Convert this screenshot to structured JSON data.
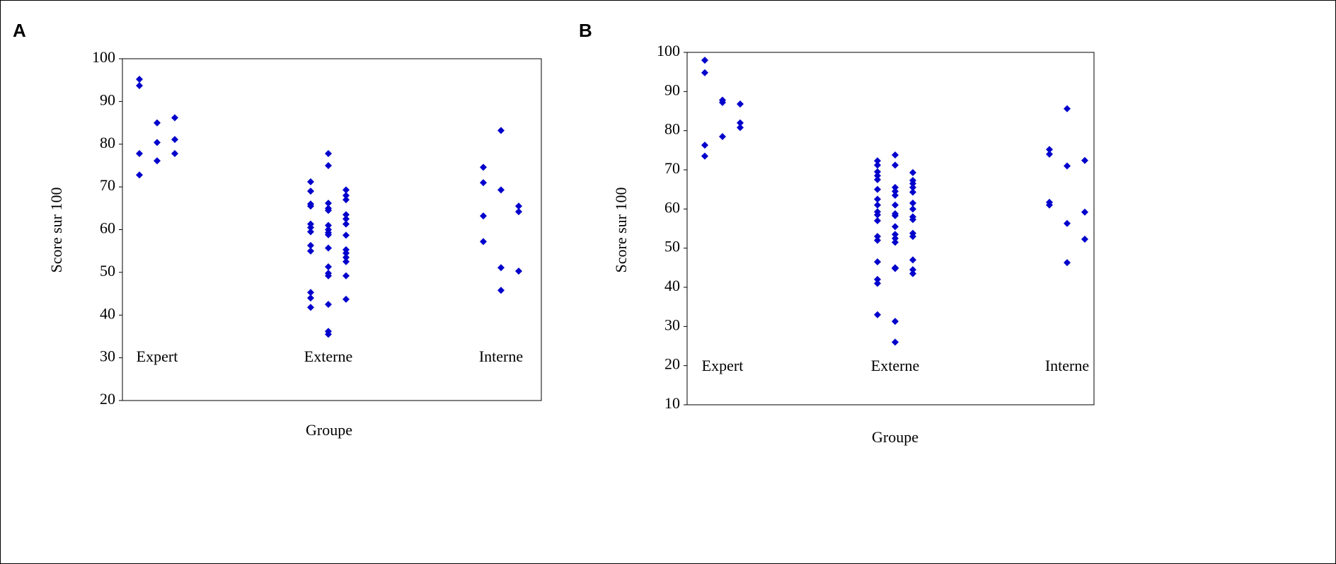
{
  "chart_data": [
    {
      "type": "strip",
      "panel": "A",
      "ylabel": "Score sur 100",
      "xlabel": "Groupe",
      "categories": [
        "Expert",
        "Externe",
        "Interne"
      ],
      "color": "#0000cc",
      "ylim": [
        20,
        100
      ],
      "yticks": [
        20,
        30,
        40,
        50,
        60,
        70,
        80,
        90,
        100
      ],
      "values": [
        [
          [
            95.2,
            93.7,
            77.8,
            72.8
          ],
          [
            85.0,
            80.4,
            76.1
          ],
          [
            86.2,
            81.1,
            77.8
          ]
        ],
        [
          [
            71.2,
            69.0,
            66.0,
            65.5,
            61.3,
            60.5,
            59.5,
            56.3,
            55.0,
            45.3,
            44.0,
            41.8
          ],
          [
            77.8,
            75.0,
            66.2,
            65.0,
            64.5,
            61.0,
            60.0,
            59.3,
            58.8,
            55.7,
            51.3,
            49.8,
            49.2,
            42.5,
            36.2,
            35.5
          ],
          [
            69.3,
            68.0,
            67.0,
            63.5,
            62.5,
            61.3,
            58.7,
            55.3,
            54.5,
            53.5,
            52.5,
            49.2,
            43.7
          ]
        ],
        [
          [
            74.6,
            71.0,
            63.2,
            57.2
          ],
          [
            83.2,
            69.3,
            51.1,
            45.8
          ],
          [
            65.5,
            64.2,
            50.3
          ]
        ]
      ]
    },
    {
      "type": "strip",
      "panel": "B",
      "ylabel": "Score sur 100",
      "xlabel": "Groupe",
      "categories": [
        "Expert",
        "Externe",
        "Interne"
      ],
      "color": "#0000cc",
      "ylim": [
        10,
        100
      ],
      "yticks": [
        10,
        20,
        30,
        40,
        50,
        60,
        70,
        80,
        90,
        100
      ],
      "values": [
        [
          [
            98.0,
            94.8,
            76.3,
            73.5
          ],
          [
            87.8,
            87.2,
            78.5
          ],
          [
            86.8,
            82.0,
            80.8
          ]
        ],
        [
          [
            72.3,
            71.2,
            69.5,
            68.5,
            67.5,
            65.0,
            62.5,
            61.0,
            59.3,
            58.5,
            57.0,
            53.0,
            52.0,
            46.5,
            42.0,
            41.0,
            33.0
          ],
          [
            73.8,
            71.2,
            65.5,
            64.5,
            63.5,
            61.0,
            58.8,
            58.3,
            55.5,
            53.5,
            52.5,
            51.5,
            45.0,
            44.8,
            31.3,
            26.0
          ],
          [
            69.3,
            67.3,
            66.5,
            65.5,
            64.3,
            61.5,
            60.0,
            58.0,
            57.3,
            53.8,
            53.0,
            47.0,
            44.5,
            43.5
          ]
        ],
        [
          [
            75.2,
            74.0,
            61.7,
            61.0
          ],
          [
            85.6,
            71.0,
            56.3,
            46.3
          ],
          [
            72.4,
            59.2,
            52.3
          ]
        ]
      ]
    }
  ]
}
